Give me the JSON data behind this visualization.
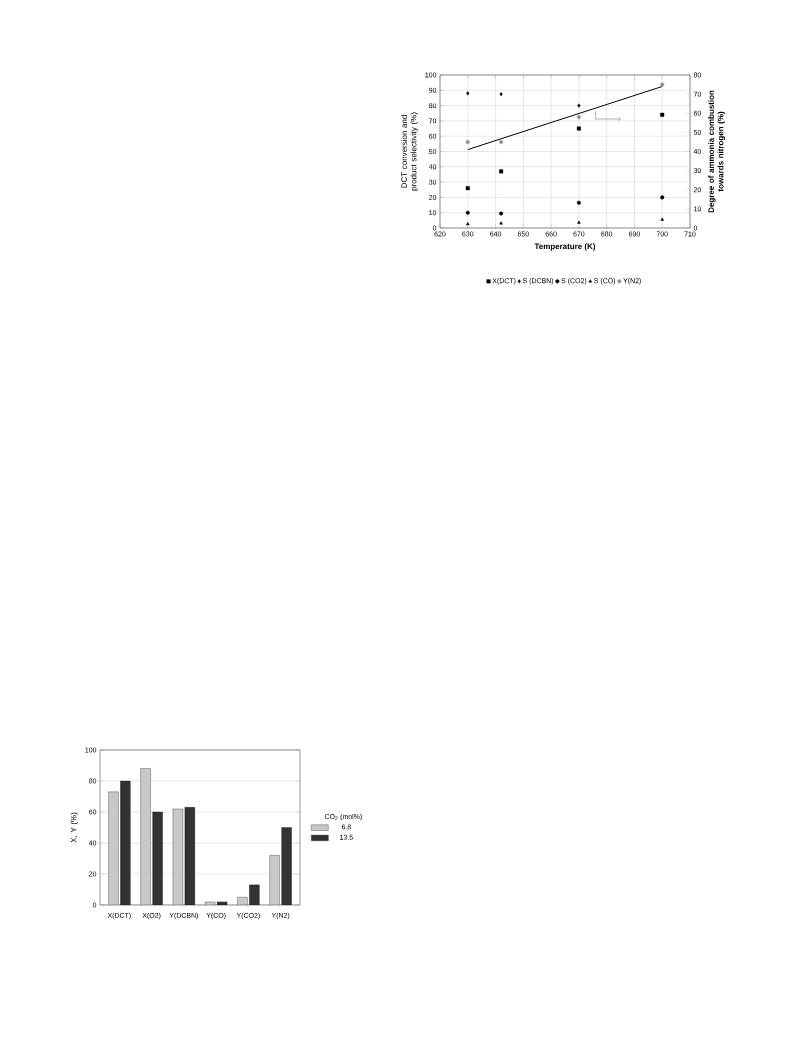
{
  "chart_data": [
    {
      "type": "scatter",
      "xlabel": "Temperature (K)",
      "ylabel": "DCT conversion and product selectivity (%)",
      "y2label": "Degree of ammonia combustion towards nitrogen (%)",
      "x": [
        630,
        642,
        670,
        700
      ],
      "series": [
        {
          "name": "X(DCT)",
          "color": "#000000",
          "marker": "square",
          "values": [
            26,
            37,
            65,
            74
          ]
        },
        {
          "name": "S (DCBN)",
          "color": "#000000",
          "marker": "diamond",
          "values": [
            88,
            87.5,
            80,
            null
          ]
        },
        {
          "name": "S (CO2)",
          "color": "#000000",
          "marker": "circle",
          "values": [
            10,
            9.5,
            16.5,
            20
          ]
        },
        {
          "name": "S (CO)",
          "color": "#000000",
          "marker": "triangle",
          "values": [
            2.5,
            3,
            3.5,
            5.5
          ]
        },
        {
          "name": "Y(N2)",
          "color": "#909090",
          "marker": "circle",
          "axis": "y2",
          "values": [
            45,
            45,
            58,
            75
          ]
        },
        {
          "type": "line",
          "color": "#000000",
          "axis": "y2",
          "x": [
            630,
            700
          ],
          "values": [
            41,
            74
          ]
        }
      ],
      "xlim": [
        620,
        710
      ],
      "xticks": [
        620,
        630,
        640,
        650,
        660,
        670,
        680,
        690,
        700,
        710
      ],
      "ylim": [
        0,
        100
      ],
      "yticks": [
        0,
        10,
        20,
        30,
        40,
        50,
        60,
        70,
        80,
        90,
        100
      ],
      "y2lim": [
        0,
        80
      ],
      "y2ticks": [
        0,
        10,
        20,
        30,
        40,
        50,
        60,
        70,
        80
      ],
      "grid": true,
      "legend": "bottom"
    },
    {
      "type": "bar",
      "ylabel": "X, Y (%)",
      "legend_title": "CO$_{2}$ (mol%)",
      "categories": [
        "X(DCT)",
        "X(O2)",
        "Y(DCBN)",
        "Y(CO)",
        "Y(CO2)",
        "Y(N2)"
      ],
      "series": [
        {
          "name": "6.8",
          "color": "#c8c8c8",
          "values": [
            73,
            88,
            62,
            2,
            5,
            32
          ]
        },
        {
          "name": "13.5",
          "color": "#333333",
          "values": [
            80,
            60,
            63,
            2,
            13,
            50
          ]
        }
      ],
      "ylim": [
        0,
        100
      ],
      "yticks": [
        0,
        20,
        40,
        60,
        80,
        100
      ],
      "grid": "y",
      "legend": "right"
    }
  ]
}
